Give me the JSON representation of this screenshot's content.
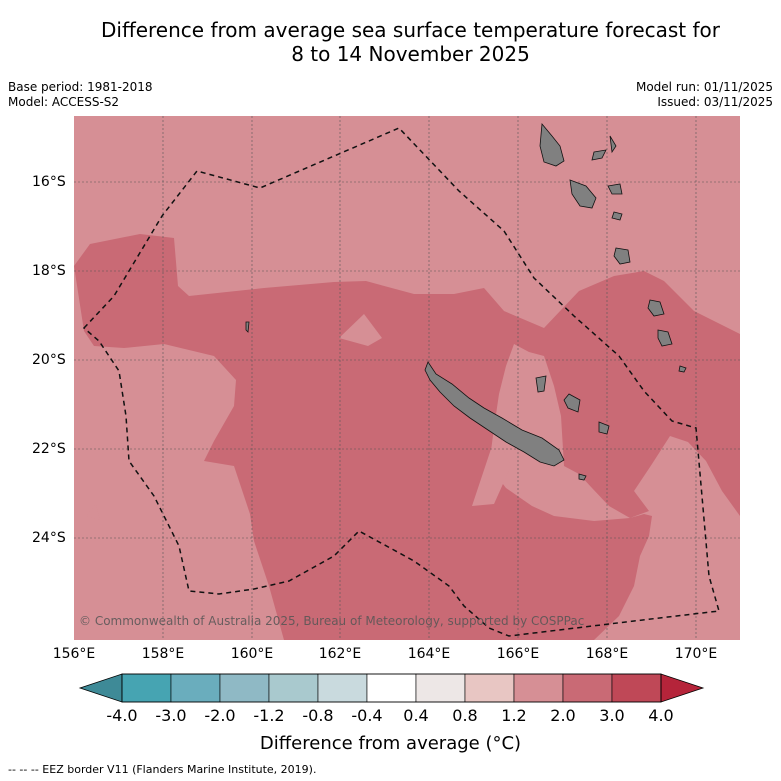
{
  "title_line1": "Difference from average sea surface temperature forecast for",
  "title_line2": "8 to 14 November 2025",
  "base_period": "Base period: 1981-2018",
  "model": "Model: ACCESS-S2",
  "model_run": "Model run: 01/11/2025",
  "issued": "Issued: 03/11/2025",
  "lat_labels": [
    "16°S",
    "18°S",
    "20°S",
    "22°S",
    "24°S"
  ],
  "lon_labels": [
    "156°E",
    "158°E",
    "160°E",
    "162°E",
    "164°E",
    "166°E",
    "168°E",
    "170°E"
  ],
  "copyright": "© Commonwealth of Australia 2025, Bureau of Meteorology, supported by COSPPac",
  "colorbar": {
    "ticks": [
      "-4.0",
      "-3.0",
      "-2.0",
      "-1.2",
      "-0.8",
      "-0.4",
      "0.4",
      "0.8",
      "1.2",
      "2.0",
      "3.0",
      "4.0"
    ],
    "colors": [
      "#46a4b2",
      "#6aadbd",
      "#8fb9c5",
      "#a9c9ce",
      "#c9dade",
      "#ffffff",
      "#ede7e6",
      "#e8c6c3",
      "#d68f95",
      "#c96a75",
      "#bf4857"
    ],
    "under_color": "#3e8a97",
    "over_color": "#b5243a",
    "label": "Difference from average (°C)"
  },
  "map_colors": {
    "anomaly_1_2_to_2": "#d68f95",
    "anomaly_2_to_3": "#c96a75",
    "land": "#808080"
  },
  "footnote": "--  --  -- EEZ border V11 (Flanders Marine Institute, 2019)."
}
